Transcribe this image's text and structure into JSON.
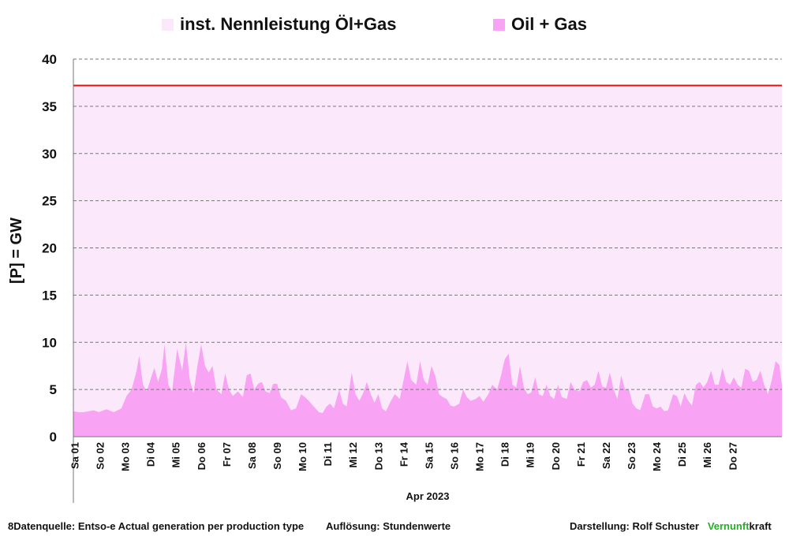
{
  "legend": {
    "capacity_label": "inst. Nennleistung Öl+Gas",
    "series_label": "Oil + Gas"
  },
  "footer": {
    "source": "8Datenquelle: Entso-e  Actual generation per production type",
    "resolution": "Auflösung: Stundenwerte",
    "author": "Darstellung:  Rolf Schuster",
    "brand_a": "Vernunft",
    "brand_b": "kraft"
  },
  "chart_data": {
    "type": "area",
    "title": "",
    "xlabel": "Apr 2023",
    "ylabel": "[P]  = GW",
    "ylim": [
      0,
      40
    ],
    "yticks": [
      0,
      5,
      10,
      15,
      20,
      25,
      30,
      35,
      40
    ],
    "grid": "horizontal dashed",
    "legend_position": "top",
    "x_range_days": [
      0,
      28
    ],
    "x_tick_labels": [
      "Sa 01",
      "So 02",
      "Mo 03",
      "Di 04",
      "Mi 05",
      "Do 06",
      "Fr 07",
      "Sa 08",
      "So 09",
      "Mo 10",
      "Di 11",
      "Mi 12",
      "Do 13",
      "Fr 14",
      "Sa 15",
      "So 16",
      "Mo 17",
      "Di 18",
      "Mi 19",
      "Do 20",
      "Fr 21",
      "Sa 22",
      "So 23",
      "Mo 24",
      "Di 25",
      "Mi 26",
      "Do 27"
    ],
    "colors": {
      "capacity_fill": "#fce8fb",
      "capacity_line": "#dd1111",
      "series_fill": "#f8a3f4",
      "grid": "#777777"
    },
    "series": [
      {
        "name": "inst. Nennleistung Öl+Gas",
        "kind": "capacity",
        "value": 37.2
      },
      {
        "name": "Oil + Gas",
        "kind": "generation",
        "points": [
          [
            0.0,
            2.7
          ],
          [
            0.2,
            2.6
          ],
          [
            0.4,
            2.6
          ],
          [
            0.6,
            2.7
          ],
          [
            0.8,
            2.8
          ],
          [
            1.0,
            2.6
          ],
          [
            1.3,
            2.9
          ],
          [
            1.6,
            2.6
          ],
          [
            1.9,
            3.0
          ],
          [
            2.1,
            4.3
          ],
          [
            2.3,
            5.0
          ],
          [
            2.5,
            7.0
          ],
          [
            2.6,
            8.6
          ],
          [
            2.75,
            5.5
          ],
          [
            2.9,
            4.8
          ],
          [
            3.1,
            6.5
          ],
          [
            3.2,
            7.3
          ],
          [
            3.35,
            5.8
          ],
          [
            3.5,
            7.2
          ],
          [
            3.6,
            9.8
          ],
          [
            3.75,
            5.5
          ],
          [
            3.9,
            4.8
          ],
          [
            4.1,
            9.3
          ],
          [
            4.3,
            7.0
          ],
          [
            4.45,
            10.0
          ],
          [
            4.6,
            6.0
          ],
          [
            4.75,
            4.6
          ],
          [
            4.9,
            7.5
          ],
          [
            5.05,
            9.8
          ],
          [
            5.2,
            7.5
          ],
          [
            5.35,
            6.8
          ],
          [
            5.5,
            7.5
          ],
          [
            5.65,
            5.0
          ],
          [
            5.85,
            4.5
          ],
          [
            6.0,
            6.7
          ],
          [
            6.15,
            5.0
          ],
          [
            6.3,
            4.3
          ],
          [
            6.5,
            4.8
          ],
          [
            6.7,
            4.2
          ],
          [
            6.85,
            6.5
          ],
          [
            7.0,
            6.7
          ],
          [
            7.15,
            5.0
          ],
          [
            7.3,
            5.6
          ],
          [
            7.45,
            5.8
          ],
          [
            7.6,
            4.8
          ],
          [
            7.75,
            4.6
          ],
          [
            7.9,
            5.6
          ],
          [
            8.05,
            5.6
          ],
          [
            8.2,
            4.2
          ],
          [
            8.4,
            3.8
          ],
          [
            8.6,
            2.8
          ],
          [
            8.8,
            3.0
          ],
          [
            9.0,
            4.5
          ],
          [
            9.15,
            4.2
          ],
          [
            9.3,
            3.8
          ],
          [
            9.5,
            3.2
          ],
          [
            9.7,
            2.6
          ],
          [
            9.85,
            2.5
          ],
          [
            10.0,
            3.2
          ],
          [
            10.15,
            3.5
          ],
          [
            10.3,
            3.0
          ],
          [
            10.5,
            5.0
          ],
          [
            10.65,
            3.5
          ],
          [
            10.8,
            3.2
          ],
          [
            11.0,
            6.8
          ],
          [
            11.15,
            4.5
          ],
          [
            11.3,
            3.8
          ],
          [
            11.45,
            4.6
          ],
          [
            11.6,
            5.8
          ],
          [
            11.75,
            4.5
          ],
          [
            11.9,
            3.6
          ],
          [
            12.05,
            4.5
          ],
          [
            12.2,
            3.0
          ],
          [
            12.35,
            2.7
          ],
          [
            12.55,
            3.8
          ],
          [
            12.7,
            4.5
          ],
          [
            12.9,
            4.0
          ],
          [
            13.05,
            6.0
          ],
          [
            13.2,
            8.0
          ],
          [
            13.35,
            6.0
          ],
          [
            13.55,
            5.5
          ],
          [
            13.7,
            8.0
          ],
          [
            13.85,
            6.0
          ],
          [
            14.0,
            5.5
          ],
          [
            14.15,
            7.5
          ],
          [
            14.3,
            6.5
          ],
          [
            14.45,
            4.5
          ],
          [
            14.6,
            4.2
          ],
          [
            14.75,
            4.0
          ],
          [
            14.9,
            3.3
          ],
          [
            15.05,
            3.2
          ],
          [
            15.25,
            3.5
          ],
          [
            15.4,
            5.0
          ],
          [
            15.55,
            4.2
          ],
          [
            15.7,
            3.8
          ],
          [
            15.9,
            4.0
          ],
          [
            16.05,
            4.3
          ],
          [
            16.2,
            3.7
          ],
          [
            16.4,
            4.5
          ],
          [
            16.55,
            5.5
          ],
          [
            16.75,
            5.0
          ],
          [
            16.9,
            6.5
          ],
          [
            17.05,
            8.2
          ],
          [
            17.2,
            8.8
          ],
          [
            17.35,
            5.5
          ],
          [
            17.5,
            5.2
          ],
          [
            17.65,
            7.5
          ],
          [
            17.8,
            5.2
          ],
          [
            17.95,
            4.5
          ],
          [
            18.1,
            4.7
          ],
          [
            18.25,
            6.3
          ],
          [
            18.4,
            4.5
          ],
          [
            18.55,
            4.3
          ],
          [
            18.7,
            5.5
          ],
          [
            18.85,
            4.3
          ],
          [
            19.0,
            4.0
          ],
          [
            19.15,
            5.5
          ],
          [
            19.3,
            4.2
          ],
          [
            19.5,
            4.0
          ],
          [
            19.65,
            5.8
          ],
          [
            19.8,
            5.0
          ],
          [
            20.0,
            4.8
          ],
          [
            20.15,
            5.8
          ],
          [
            20.3,
            6.0
          ],
          [
            20.45,
            5.2
          ],
          [
            20.6,
            5.5
          ],
          [
            20.75,
            7.0
          ],
          [
            20.9,
            5.3
          ],
          [
            21.05,
            5.2
          ],
          [
            21.2,
            6.8
          ],
          [
            21.35,
            5.0
          ],
          [
            21.5,
            4.0
          ],
          [
            21.65,
            6.5
          ],
          [
            21.8,
            5.0
          ],
          [
            21.95,
            5.0
          ],
          [
            22.1,
            3.5
          ],
          [
            22.25,
            3.0
          ],
          [
            22.4,
            2.8
          ],
          [
            22.6,
            4.5
          ],
          [
            22.75,
            4.5
          ],
          [
            22.9,
            3.2
          ],
          [
            23.05,
            3.0
          ],
          [
            23.2,
            3.2
          ],
          [
            23.35,
            2.7
          ],
          [
            23.5,
            2.8
          ],
          [
            23.7,
            4.5
          ],
          [
            23.85,
            4.3
          ],
          [
            24.0,
            3.2
          ],
          [
            24.15,
            4.6
          ],
          [
            24.3,
            3.8
          ],
          [
            24.45,
            3.3
          ],
          [
            24.6,
            5.5
          ],
          [
            24.75,
            5.8
          ],
          [
            24.9,
            5.2
          ],
          [
            25.05,
            5.8
          ],
          [
            25.2,
            7.0
          ],
          [
            25.35,
            5.5
          ],
          [
            25.5,
            5.5
          ],
          [
            25.65,
            7.3
          ],
          [
            25.8,
            5.8
          ],
          [
            25.95,
            5.5
          ],
          [
            26.1,
            6.3
          ],
          [
            26.25,
            5.5
          ],
          [
            26.4,
            5.2
          ],
          [
            26.55,
            7.2
          ],
          [
            26.7,
            7.0
          ],
          [
            26.85,
            5.8
          ],
          [
            27.0,
            6.0
          ],
          [
            27.15,
            7.0
          ],
          [
            27.3,
            5.5
          ],
          [
            27.45,
            4.5
          ],
          [
            27.6,
            6.0
          ],
          [
            27.75,
            8.0
          ],
          [
            27.9,
            7.6
          ],
          [
            28.0,
            5.5
          ]
        ]
      }
    ]
  }
}
